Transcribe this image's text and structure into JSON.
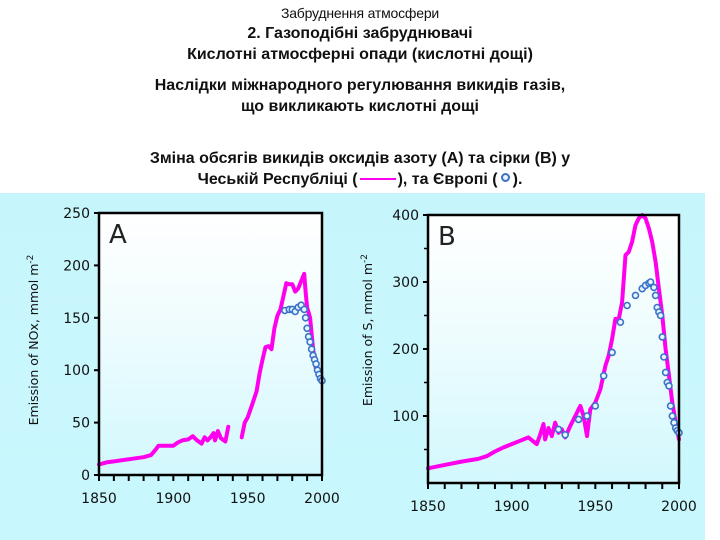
{
  "header": {
    "section": "Забруднення атмосфери",
    "title_line1": "2. Газоподібні забруднювачі",
    "title_line2": "Кислотні атмосферні опади (кислотні дощі)",
    "subtitle_line1": "Наслідки міжнародного регулювання викидів газів,",
    "subtitle_line2": "що викликають кислотні дощі",
    "caption_line1": "Зміна обсягів викидів оксидів азоту (A) та сірки (B) у",
    "caption_line2_a": "Чеській Республіці (",
    "caption_line2_b": "), та Європі (",
    "caption_line2_c": ")."
  },
  "colors": {
    "czech_line": "#ff00ee",
    "europe_marker": "#3a72c8",
    "panel_bg": "#c8f7fd",
    "plot_bg": "#ffffff"
  },
  "chart_data": [
    {
      "type": "line",
      "panel_label": "A",
      "title": "",
      "xlabel": "",
      "ylabel": "Emission of NOx, mmol m-2",
      "xlim": [
        1850,
        2000
      ],
      "ylim": [
        0,
        250
      ],
      "xticks": [
        1850,
        1900,
        1950,
        2000
      ],
      "yticks": [
        0,
        50,
        100,
        150,
        200,
        250
      ],
      "grid": false,
      "legend": [
        "Czech Republic (line)",
        "Europe (circles)"
      ],
      "series": [
        {
          "name": "Czech Republic",
          "style": "line",
          "segments": [
            {
              "x": [
                1850,
                1855,
                1860,
                1865,
                1870,
                1875,
                1880,
                1885,
                1888,
                1890,
                1895,
                1900,
                1903,
                1906,
                1910,
                1913,
                1916,
                1919,
                1921,
                1923,
                1925,
                1927,
                1928,
                1930,
                1932,
                1935,
                1937
              ],
              "y": [
                10,
                12,
                13,
                14,
                15,
                16,
                17,
                19,
                24,
                28,
                28,
                28,
                31,
                33,
                34,
                37,
                33,
                30,
                36,
                33,
                36,
                40,
                33,
                42,
                35,
                32,
                46
              ]
            },
            {
              "x": [
                1946,
                1948,
                1950,
                1953,
                1956,
                1958,
                1960,
                1962,
                1964,
                1966,
                1968,
                1970,
                1972,
                1974,
                1976,
                1978,
                1980,
                1982,
                1984,
                1986,
                1988,
                1989,
                1990,
                1992,
                1994,
                1996
              ],
              "y": [
                36,
                50,
                55,
                67,
                80,
                97,
                110,
                122,
                123,
                120,
                140,
                152,
                158,
                170,
                183,
                182,
                182,
                175,
                178,
                185,
                192,
                175,
                160,
                150,
                120,
                100
              ]
            }
          ]
        },
        {
          "name": "Europe",
          "style": "circle-markers",
          "x": [
            1975,
            1978,
            1980,
            1982,
            1984,
            1986,
            1988,
            1989,
            1990,
            1991,
            1992,
            1993,
            1994,
            1995,
            1996,
            1997,
            1998,
            1999,
            2000
          ],
          "y": [
            157,
            158,
            158,
            156,
            160,
            162,
            158,
            150,
            140,
            132,
            127,
            120,
            114,
            110,
            106,
            100,
            96,
            92,
            90
          ]
        }
      ]
    },
    {
      "type": "line",
      "panel_label": "B",
      "title": "",
      "xlabel": "",
      "ylabel": "Emission of S, mmol m-2",
      "xlim": [
        1850,
        2000
      ],
      "ylim": [
        0,
        400
      ],
      "xticks": [
        1850,
        1900,
        1950,
        2000
      ],
      "yticks": [
        100,
        200,
        300,
        400
      ],
      "grid": false,
      "legend": [
        "Czech Republic (line)",
        "Europe (circles)"
      ],
      "series": [
        {
          "name": "Czech Republic",
          "style": "line",
          "x": [
            1850,
            1860,
            1870,
            1880,
            1885,
            1890,
            1895,
            1900,
            1905,
            1910,
            1913,
            1915,
            1917,
            1919,
            1920,
            1922,
            1924,
            1926,
            1928,
            1930,
            1932,
            1935,
            1938,
            1941,
            1943,
            1945,
            1947,
            1950,
            1953,
            1956,
            1958,
            1960,
            1962,
            1964,
            1966,
            1968,
            1970,
            1972,
            1974,
            1976,
            1978,
            1980,
            1982,
            1984,
            1986,
            1988,
            1990,
            1992,
            1994,
            1996,
            1998,
            2000
          ],
          "y": [
            22,
            27,
            32,
            36,
            40,
            47,
            53,
            58,
            63,
            68,
            62,
            58,
            72,
            88,
            65,
            82,
            70,
            90,
            75,
            80,
            68,
            85,
            100,
            115,
            100,
            70,
            110,
            120,
            140,
            175,
            190,
            215,
            245,
            245,
            270,
            340,
            345,
            360,
            385,
            395,
            400,
            395,
            380,
            360,
            330,
            290,
            250,
            200,
            160,
            120,
            90,
            65
          ]
        },
        {
          "name": "Europe",
          "style": "circle-markers",
          "x": [
            1928,
            1932,
            1940,
            1945,
            1950,
            1955,
            1960,
            1965,
            1969,
            1974,
            1978,
            1980,
            1982,
            1983,
            1985,
            1986,
            1987,
            1988,
            1989,
            1990,
            1991,
            1992,
            1993,
            1994,
            1995,
            1996,
            1997,
            1998,
            1999,
            2000
          ],
          "y": [
            80,
            72,
            95,
            100,
            115,
            160,
            195,
            240,
            265,
            280,
            290,
            295,
            298,
            300,
            292,
            280,
            262,
            255,
            250,
            218,
            188,
            165,
            150,
            145,
            115,
            100,
            90,
            82,
            78,
            75
          ]
        }
      ]
    }
  ]
}
